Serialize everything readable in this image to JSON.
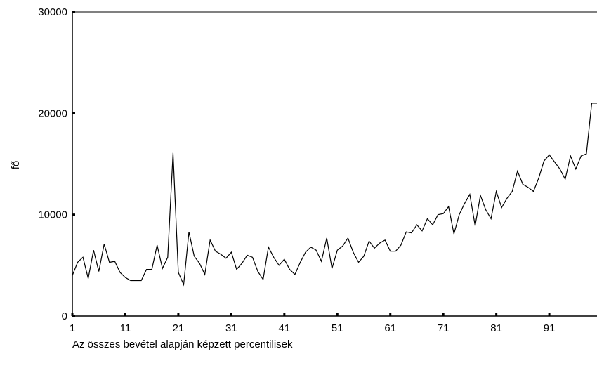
{
  "chart_data": {
    "type": "line",
    "title": "",
    "xlabel": "Az összes bevétel alapján képzett percentilisek",
    "ylabel": "fő",
    "x_ticks": [
      1,
      11,
      21,
      31,
      41,
      51,
      61,
      71,
      81,
      91
    ],
    "y_ticks": [
      0,
      10000,
      20000,
      30000
    ],
    "xlim": [
      1,
      100
    ],
    "ylim": [
      0,
      30000
    ],
    "grid": false,
    "series": [
      {
        "x": [
          1,
          2,
          3,
          4,
          5,
          6,
          7,
          8,
          9,
          10,
          11,
          12,
          13,
          14,
          15,
          16,
          17,
          18,
          19,
          20,
          21,
          22,
          23,
          24,
          25,
          26,
          27,
          28,
          29,
          30,
          31,
          32,
          33,
          34,
          35,
          36,
          37,
          38,
          39,
          40,
          41,
          42,
          43,
          44,
          45,
          46,
          47,
          48,
          49,
          50,
          51,
          52,
          53,
          54,
          55,
          56,
          57,
          58,
          59,
          60,
          61,
          62,
          63,
          64,
          65,
          66,
          67,
          68,
          69,
          70,
          71,
          72,
          73,
          74,
          75,
          76,
          77,
          78,
          79,
          80,
          81,
          82,
          83,
          84,
          85,
          86,
          87,
          88,
          89,
          90,
          91,
          92,
          93,
          94,
          95,
          96,
          97,
          98,
          99,
          100
        ],
        "values": [
          4000,
          5300,
          5800,
          3700,
          6500,
          4400,
          7100,
          5300,
          5400,
          4300,
          3800,
          3500,
          3500,
          3500,
          4600,
          4600,
          7000,
          4700,
          5800,
          16100,
          4300,
          3100,
          8300,
          5900,
          5200,
          4100,
          7500,
          6400,
          6100,
          5700,
          6300,
          4600,
          5200,
          6000,
          5800,
          4400,
          3600,
          6800,
          5800,
          5000,
          5600,
          4600,
          4100,
          5300,
          6300,
          6800,
          6500,
          5400,
          7700,
          4700,
          6500,
          6900,
          7700,
          6300,
          5300,
          5900,
          7400,
          6700,
          7200,
          7500,
          6400,
          6400,
          7000,
          8300,
          8200,
          9000,
          8400,
          9600,
          9000,
          10000,
          10100,
          10800,
          8100,
          10000,
          11100,
          12000,
          8900,
          11900,
          10500,
          9600,
          12300,
          10700,
          11600,
          12300,
          14300,
          13000,
          12700,
          12300,
          13600,
          15300,
          15900,
          15200,
          14500,
          13500,
          15800,
          14500,
          15800,
          16000,
          21000,
          21000
        ]
      }
    ]
  }
}
